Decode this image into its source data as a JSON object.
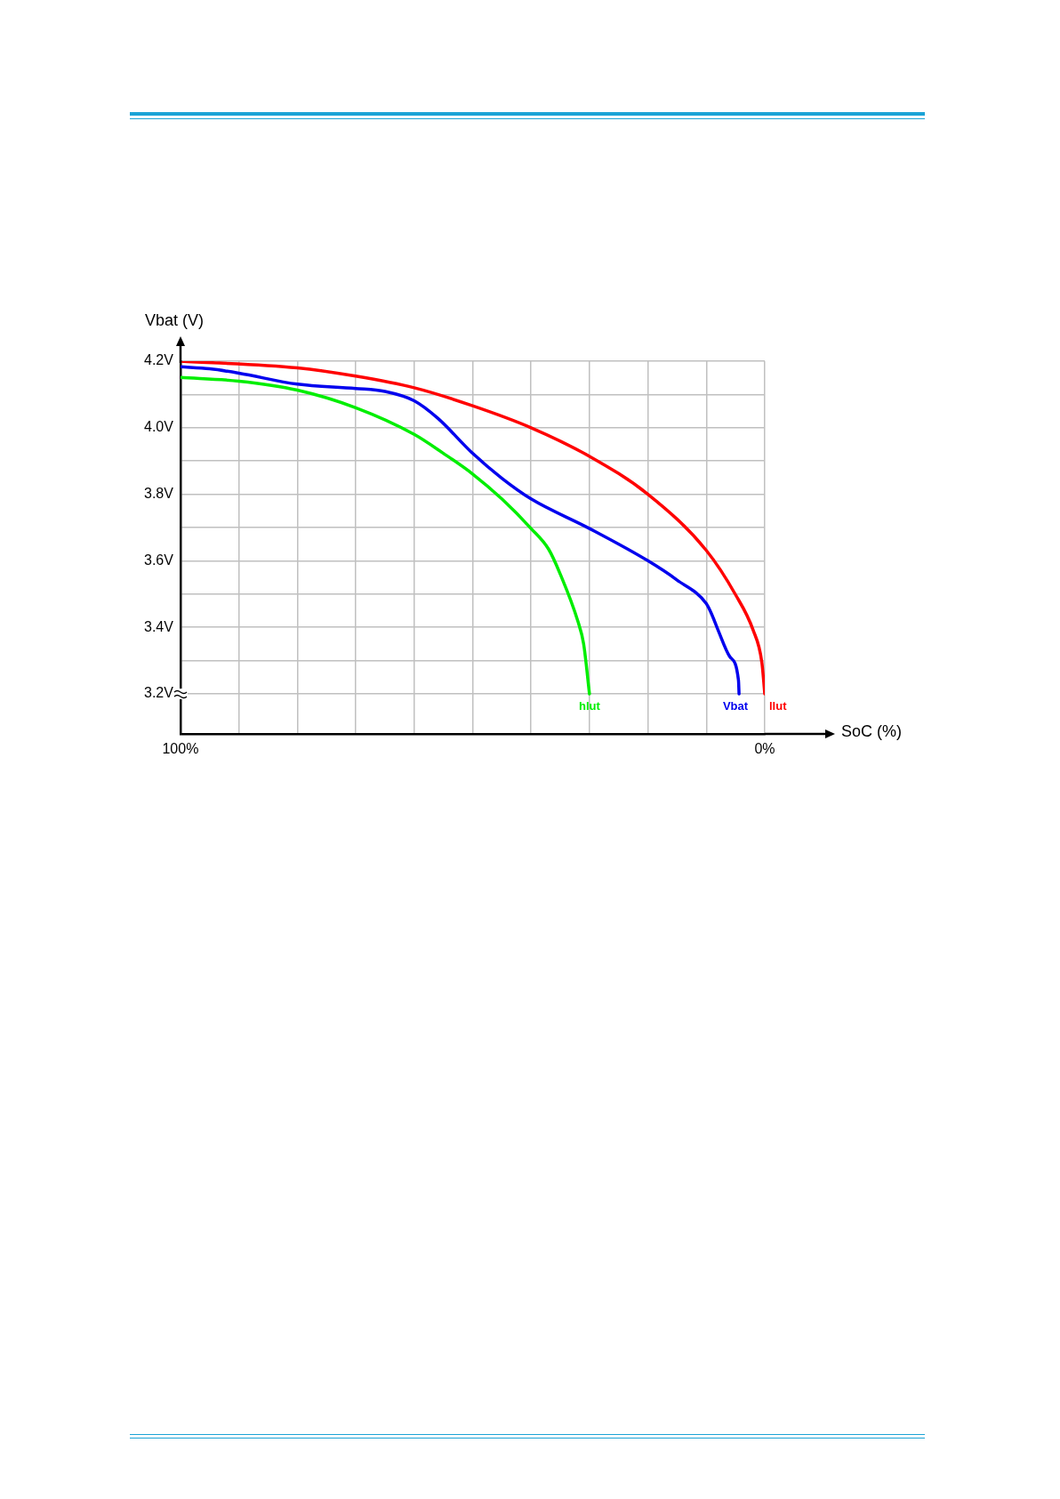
{
  "chart_data": {
    "type": "line",
    "xlabel": "SoC (%)",
    "ylabel": "Vbat (V)",
    "xlim": [
      100,
      0
    ],
    "ylim": [
      3.08,
      4.2
    ],
    "xticks": [
      {
        "value": 100,
        "label": "100%"
      },
      {
        "value": 90,
        "label": null
      },
      {
        "value": 80,
        "label": null
      },
      {
        "value": 70,
        "label": null
      },
      {
        "value": 60,
        "label": null
      },
      {
        "value": 50,
        "label": null
      },
      {
        "value": 40,
        "label": null
      },
      {
        "value": 30,
        "label": null
      },
      {
        "value": 20,
        "label": null
      },
      {
        "value": 10,
        "label": null
      },
      {
        "value": 0,
        "label": "0%"
      }
    ],
    "yticks": [
      {
        "value": 3.2,
        "label": "3.2V"
      },
      {
        "value": 3.3,
        "label": null
      },
      {
        "value": 3.4,
        "label": "3.4V"
      },
      {
        "value": 3.5,
        "label": null
      },
      {
        "value": 3.6,
        "label": "3.6V"
      },
      {
        "value": 3.7,
        "label": null
      },
      {
        "value": 3.8,
        "label": "3.8V"
      },
      {
        "value": 3.9,
        "label": null
      },
      {
        "value": 4.0,
        "label": "4.0V"
      },
      {
        "value": 4.1,
        "label": null
      },
      {
        "value": 4.2,
        "label": "4.2V"
      }
    ],
    "grid": true,
    "legend": false,
    "marker": "none",
    "line_style": "solid",
    "series": [
      {
        "name": "hlut",
        "color": "#00ee00",
        "x": [
          100,
          90,
          80,
          70,
          60,
          55,
          50,
          45,
          40,
          37,
          35,
          32,
          31,
          30
        ],
        "values": [
          4.151,
          4.14,
          4.113,
          4.06,
          3.98,
          3.923,
          3.861,
          3.786,
          3.697,
          3.635,
          3.56,
          3.419,
          3.35,
          3.2
        ]
      },
      {
        "name": "Vbat",
        "color": "#0000ee",
        "x": [
          100,
          95,
          90,
          80,
          70,
          65,
          60,
          56,
          50,
          45,
          40,
          30,
          20,
          15,
          10,
          9,
          8,
          6,
          4.5,
          4.4
        ],
        "values": [
          4.183,
          4.177,
          4.164,
          4.131,
          4.118,
          4.109,
          4.081,
          4.029,
          3.923,
          3.848,
          3.786,
          3.697,
          3.6,
          3.542,
          3.471,
          3.436,
          3.392,
          3.312,
          3.241,
          3.2
        ]
      },
      {
        "name": "llut",
        "color": "#ff0000",
        "x": [
          100,
          80,
          70,
          60,
          50,
          40,
          30,
          20,
          10,
          5,
          2,
          0.5,
          0
        ],
        "values": [
          4.2,
          4.18,
          4.155,
          4.12,
          4.066,
          4.0,
          3.914,
          3.8,
          3.631,
          3.498,
          3.392,
          3.295,
          3.2
        ]
      }
    ]
  }
}
